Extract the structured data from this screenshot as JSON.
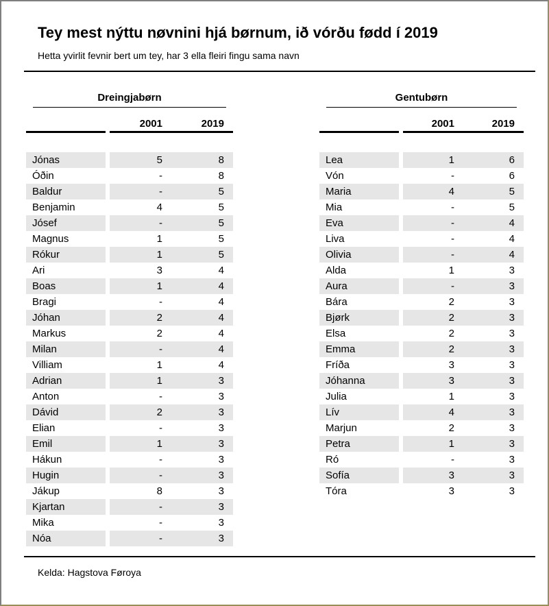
{
  "page": {
    "title": "Tey mest nýttu nøvnini hjá børnum, ið vórðu fødd í 2019",
    "subtitle": "Hetta yvirlit fevnir bert um tey, har 3 ella fleiri fingu sama navn",
    "source": "Kelda: Hagstova Føroya"
  },
  "colors": {
    "row_shade": "#e6e6e6",
    "rule": "#000000",
    "frame_top_left": "#7f7f7f",
    "frame_bottom_right": "#9a8e58"
  },
  "chart_data": [
    {
      "type": "table",
      "title": "Dreingjabørn",
      "columns": [
        "2001",
        "2019"
      ],
      "rows": [
        [
          "Jónas",
          "5",
          "8"
        ],
        [
          "Óðin",
          "-",
          "8"
        ],
        [
          "Baldur",
          "-",
          "5"
        ],
        [
          "Benjamin",
          "4",
          "5"
        ],
        [
          "Jósef",
          "-",
          "5"
        ],
        [
          "Magnus",
          "1",
          "5"
        ],
        [
          "Rókur",
          "1",
          "5"
        ],
        [
          "Ari",
          "3",
          "4"
        ],
        [
          "Boas",
          "1",
          "4"
        ],
        [
          "Bragi",
          "-",
          "4"
        ],
        [
          "Jóhan",
          "2",
          "4"
        ],
        [
          "Markus",
          "2",
          "4"
        ],
        [
          "Milan",
          "-",
          "4"
        ],
        [
          "Villiam",
          "1",
          "4"
        ],
        [
          "Adrian",
          "1",
          "3"
        ],
        [
          "Anton",
          "-",
          "3"
        ],
        [
          "Dávid",
          "2",
          "3"
        ],
        [
          "Elian",
          "-",
          "3"
        ],
        [
          "Emil",
          "1",
          "3"
        ],
        [
          "Hákun",
          "-",
          "3"
        ],
        [
          "Hugin",
          "-",
          "3"
        ],
        [
          "Jákup",
          "8",
          "3"
        ],
        [
          "Kjartan",
          "-",
          "3"
        ],
        [
          "Mika",
          "-",
          "3"
        ],
        [
          "Nóa",
          "-",
          "3"
        ]
      ]
    },
    {
      "type": "table",
      "title": "Gentubørn",
      "columns": [
        "2001",
        "2019"
      ],
      "rows": [
        [
          "Lea",
          "1",
          "6"
        ],
        [
          "Vón",
          "-",
          "6"
        ],
        [
          "Maria",
          "4",
          "5"
        ],
        [
          "Mia",
          "-",
          "5"
        ],
        [
          "Eva",
          "-",
          "4"
        ],
        [
          "Liva",
          "-",
          "4"
        ],
        [
          "Olivia",
          "-",
          "4"
        ],
        [
          "Alda",
          "1",
          "3"
        ],
        [
          "Aura",
          "-",
          "3"
        ],
        [
          "Bára",
          "2",
          "3"
        ],
        [
          "Bjørk",
          "2",
          "3"
        ],
        [
          "Elsa",
          "2",
          "3"
        ],
        [
          "Emma",
          "2",
          "3"
        ],
        [
          "Fríða",
          "3",
          "3"
        ],
        [
          "Jóhanna",
          "3",
          "3"
        ],
        [
          "Julia",
          "1",
          "3"
        ],
        [
          "Lív",
          "4",
          "3"
        ],
        [
          "Marjun",
          "2",
          "3"
        ],
        [
          "Petra",
          "1",
          "3"
        ],
        [
          "Ró",
          "-",
          "3"
        ],
        [
          "Sofía",
          "3",
          "3"
        ],
        [
          "Tóra",
          "3",
          "3"
        ]
      ]
    }
  ]
}
